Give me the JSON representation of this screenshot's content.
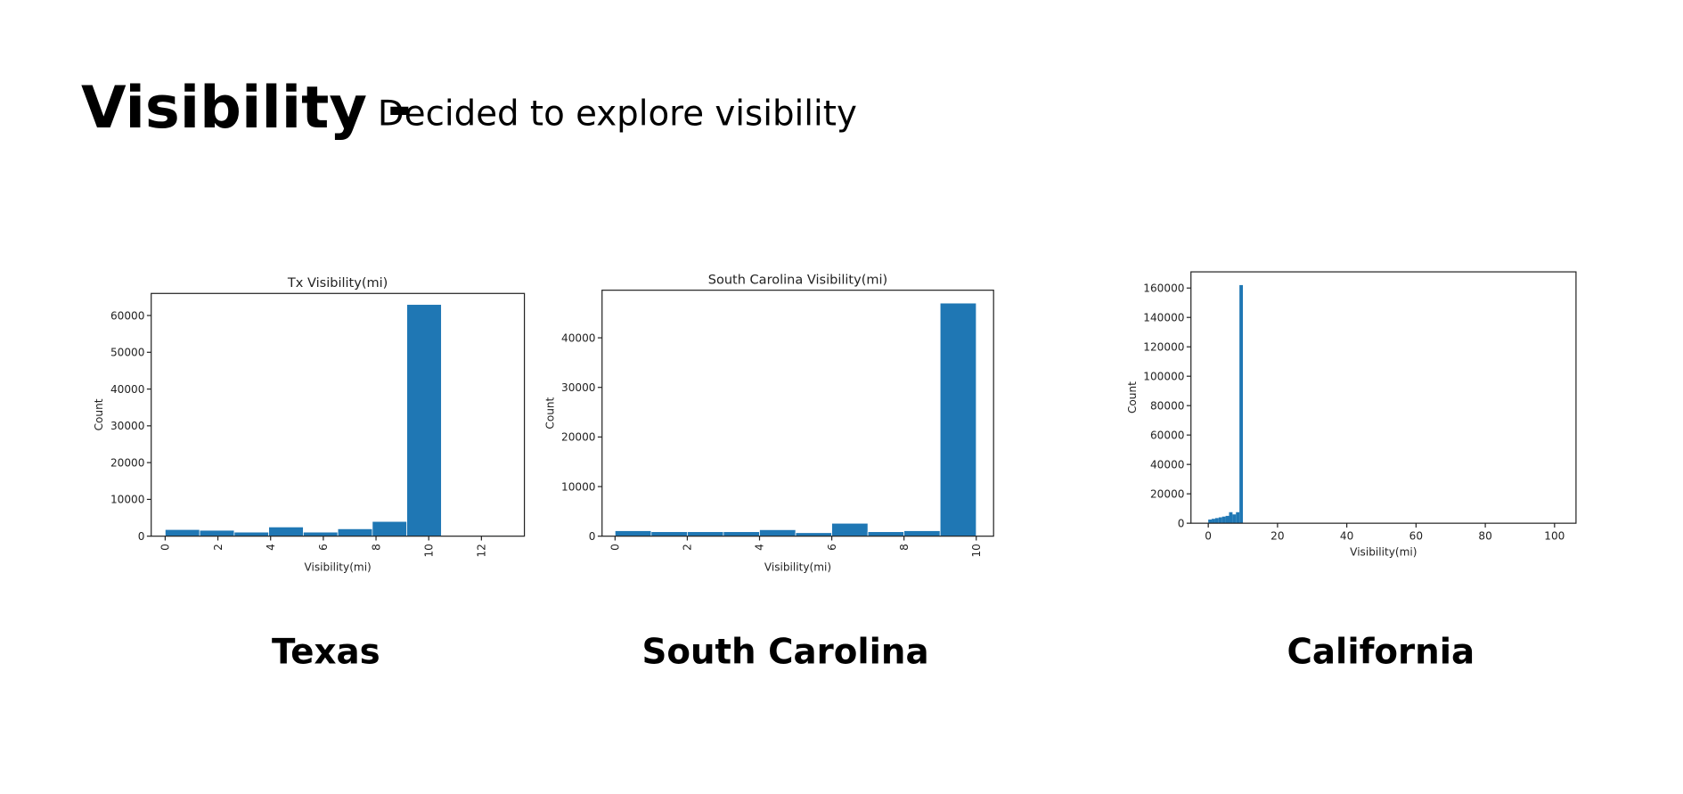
{
  "slide": {
    "title": "Visibility -",
    "subtitle": "Decided to explore visibility",
    "captions": [
      "Texas",
      "South Carolina",
      "California"
    ]
  },
  "chart_data": [
    {
      "type": "histogram",
      "title": "Tx Visibility(mi)",
      "x_label": "Visibility(mi)",
      "y_label": "Count",
      "bins": [
        0,
        1.31,
        2.62,
        3.93,
        5.24,
        6.55,
        7.86,
        9.17,
        10.48,
        11.79,
        13.1
      ],
      "counts": [
        1800,
        1600,
        1100,
        2500,
        1100,
        2000,
        4000,
        63000,
        0,
        200
      ],
      "color": "#1f77b4",
      "xlim": [
        -0.53,
        13.63
      ],
      "ylim": [
        0,
        66000
      ],
      "xticks": [
        0,
        2,
        4,
        6,
        8,
        10,
        12
      ],
      "yticks": [
        0,
        10000,
        20000,
        30000,
        40000,
        50000,
        60000
      ]
    },
    {
      "type": "histogram",
      "title": "South Carolina Visibility(mi)",
      "x_label": "Visibility(mi)",
      "y_label": "Count",
      "bins": [
        0,
        1,
        2,
        3,
        4,
        5,
        6,
        7,
        8,
        9,
        10
      ],
      "counts": [
        1100,
        900,
        900,
        900,
        1300,
        700,
        2600,
        900,
        1100,
        47000
      ],
      "color": "#1f77b4",
      "xlim": [
        -0.36,
        10.48
      ],
      "ylim": [
        0,
        49600
      ],
      "xticks": [
        0,
        2,
        4,
        6,
        8,
        10
      ],
      "yticks": [
        0,
        10000,
        20000,
        30000,
        40000
      ]
    },
    {
      "type": "histogram",
      "x_label": "Visibility(mi)",
      "y_label": "Count",
      "bins": [
        0,
        1,
        2,
        3,
        4,
        5,
        6,
        7,
        8,
        9,
        10
      ],
      "counts": [
        2500,
        3000,
        3500,
        4000,
        4500,
        5000,
        7500,
        6000,
        7500,
        162000
      ],
      "color": "#1f77b4",
      "xlim": [
        -5,
        106.2
      ],
      "ylim": [
        0,
        171000
      ],
      "xticks": [
        0,
        20,
        40,
        60,
        80,
        100
      ],
      "yticks": [
        0,
        20000,
        40000,
        60000,
        80000,
        100000,
        120000,
        140000,
        160000
      ]
    }
  ]
}
